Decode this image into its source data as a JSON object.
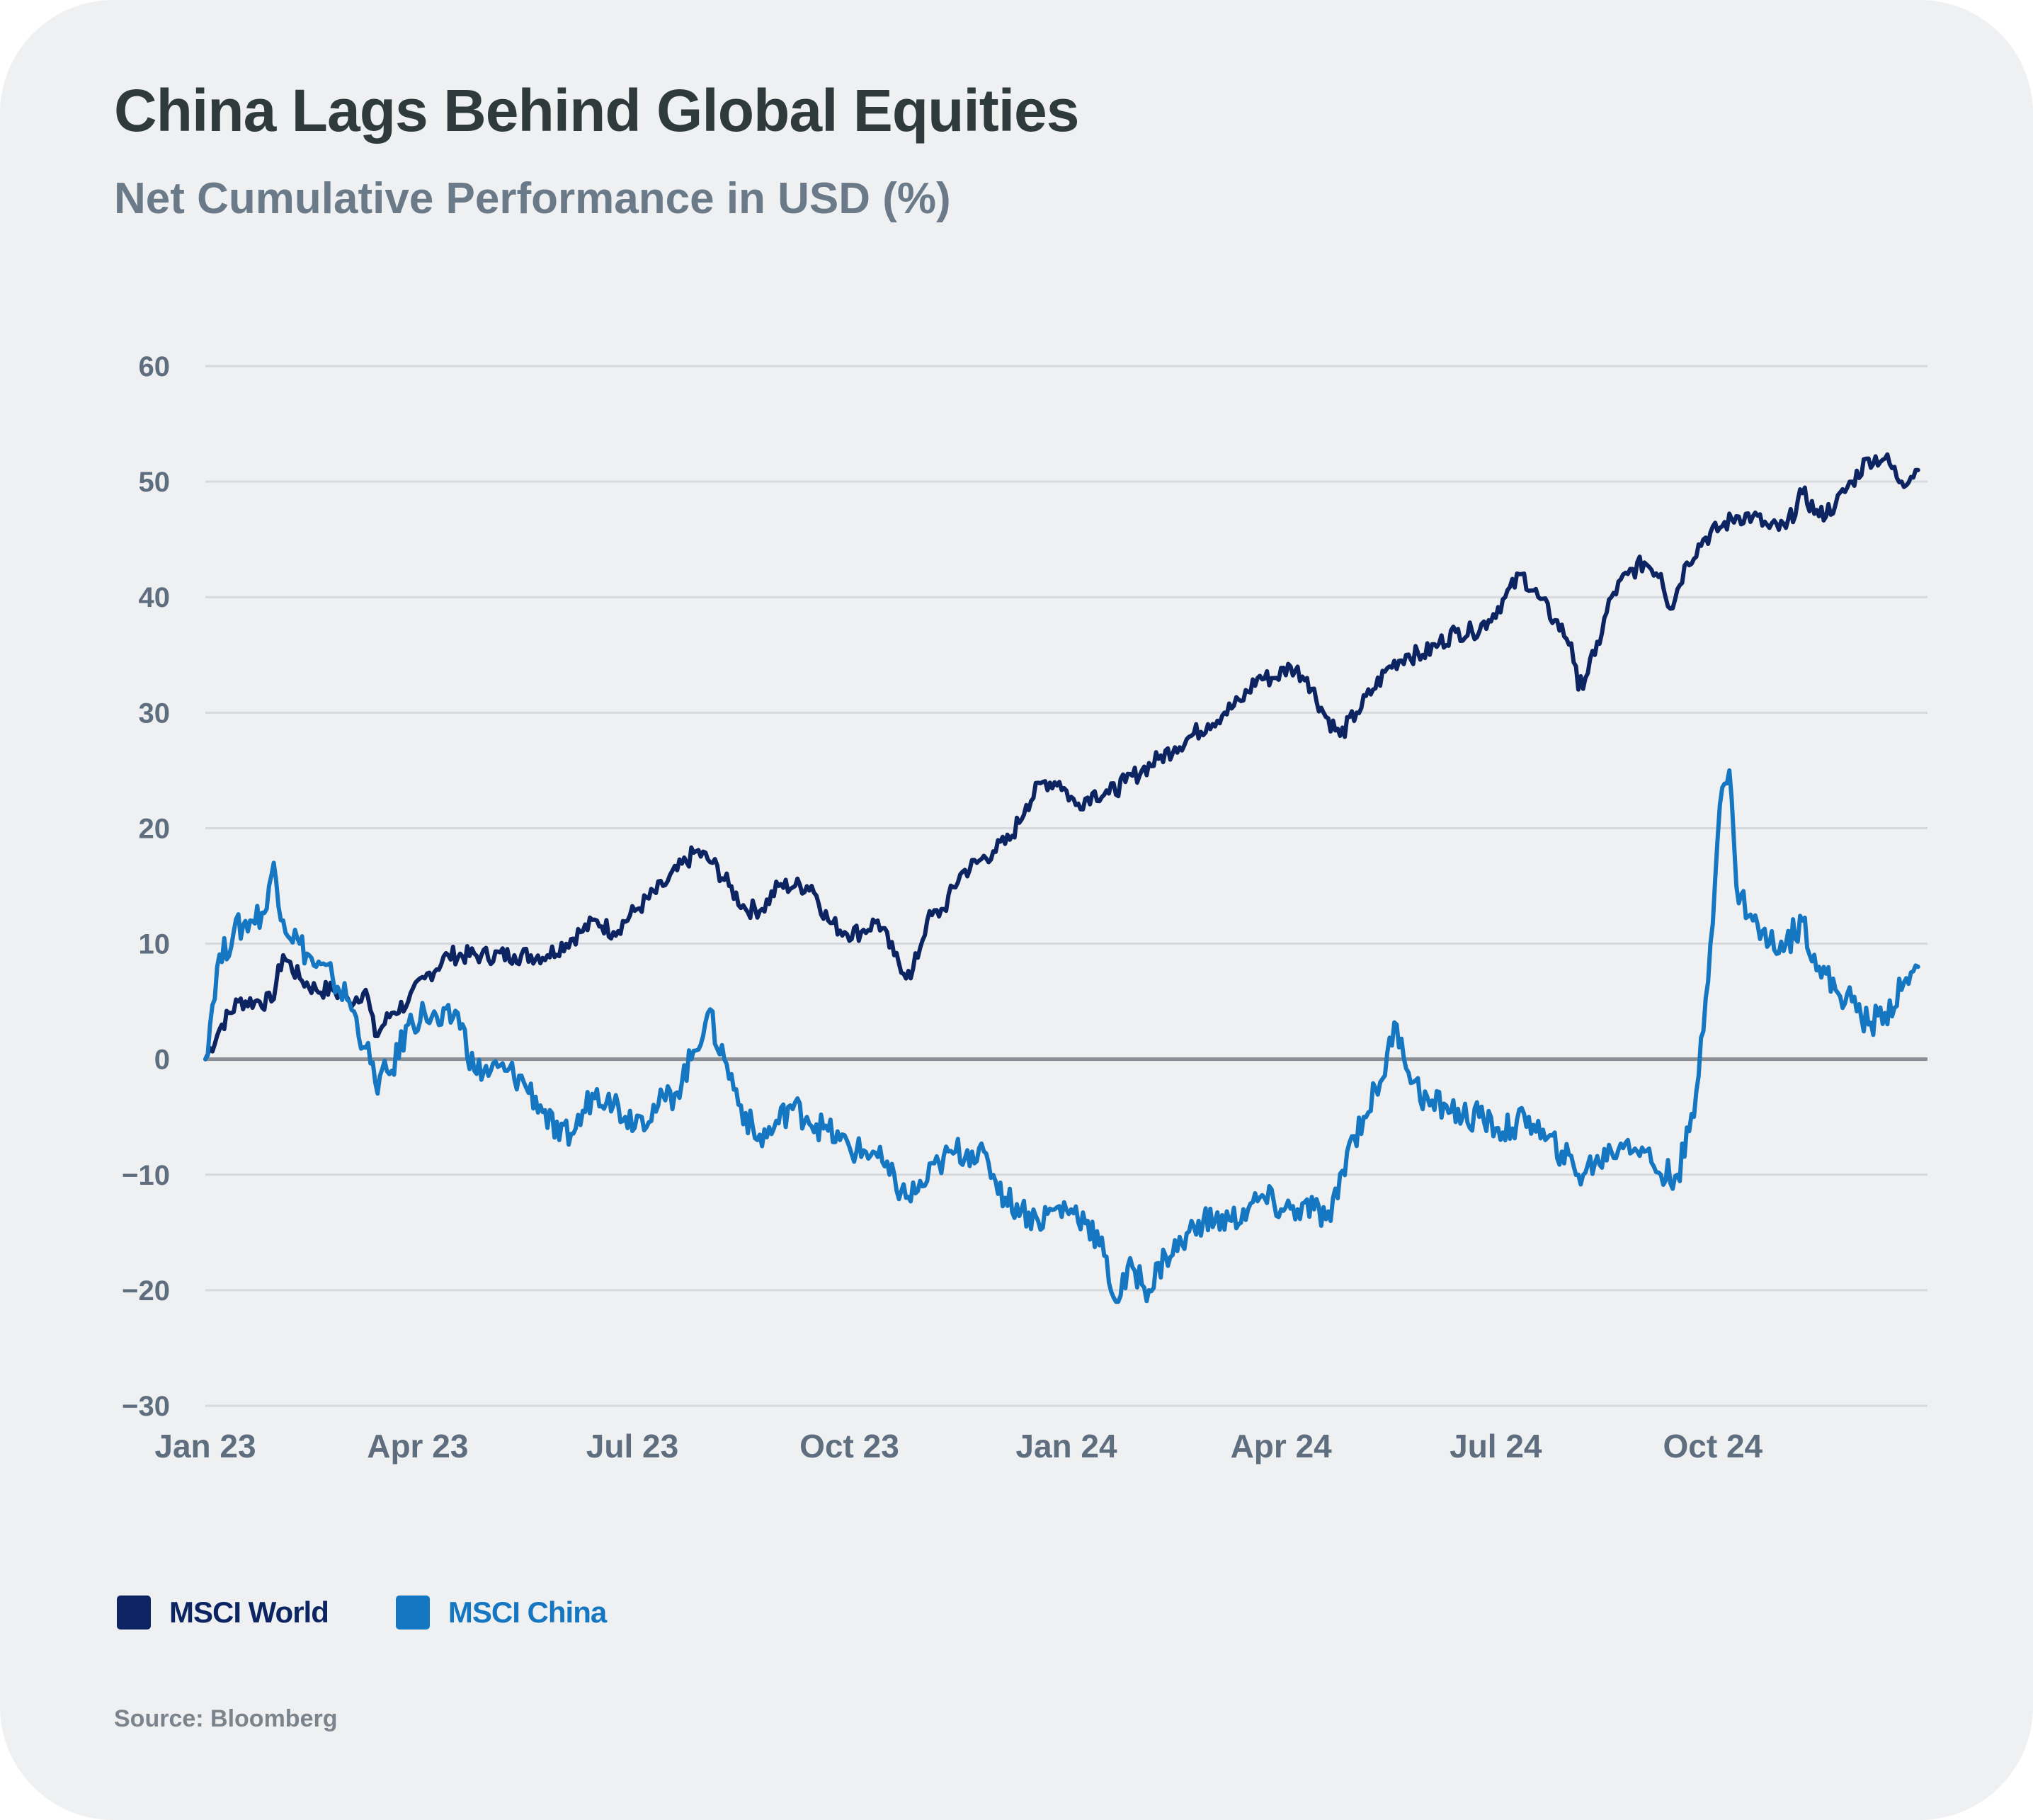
{
  "title": "China Lags Behind Global Equities",
  "subtitle": "Net Cumulative Performance in USD (%)",
  "source": "Source: Bloomberg",
  "colors": {
    "world": "#0c2461",
    "china": "#1576c2",
    "grid": "#d6d9de",
    "zero": "#8a8f96"
  },
  "chart_data": {
    "type": "line",
    "title": "China Lags Behind Global Equities",
    "subtitle": "Net Cumulative Performance in USD (%)",
    "xlabel": "",
    "ylabel": "",
    "x_tick_labels": [
      "Jan 23",
      "Apr 23",
      "Jul 23",
      "Oct 23",
      "Jan 24",
      "Apr 24",
      "Jul 24",
      "Oct 24"
    ],
    "y_ticks": [
      60,
      50,
      40,
      30,
      20,
      10,
      0,
      -10,
      -20,
      -30
    ],
    "ylim": [
      -30,
      60
    ],
    "xlim": [
      "2023-01-01",
      "2024-12-31"
    ],
    "grid": true,
    "legend_position": "bottom-left",
    "series": [
      {
        "name": "MSCI World",
        "color": "#0c2461",
        "points": [
          [
            "2023-01-01",
            0
          ],
          [
            "2023-01-08",
            3
          ],
          [
            "2023-01-15",
            5
          ],
          [
            "2023-01-22",
            5
          ],
          [
            "2023-01-29",
            5
          ],
          [
            "2023-02-03",
            9
          ],
          [
            "2023-02-10",
            7
          ],
          [
            "2023-02-17",
            6
          ],
          [
            "2023-02-24",
            6
          ],
          [
            "2023-03-03",
            5
          ],
          [
            "2023-03-10",
            6
          ],
          [
            "2023-03-14",
            2
          ],
          [
            "2023-03-21",
            4
          ],
          [
            "2023-03-28",
            5
          ],
          [
            "2023-04-04",
            7
          ],
          [
            "2023-04-14",
            9
          ],
          [
            "2023-04-28",
            9
          ],
          [
            "2023-05-12",
            9
          ],
          [
            "2023-05-26",
            9
          ],
          [
            "2023-06-09",
            11
          ],
          [
            "2023-06-16",
            12
          ],
          [
            "2023-06-23",
            11
          ],
          [
            "2023-07-03",
            13
          ],
          [
            "2023-07-14",
            15
          ],
          [
            "2023-07-28",
            18
          ],
          [
            "2023-08-04",
            17
          ],
          [
            "2023-08-11",
            15
          ],
          [
            "2023-08-18",
            13
          ],
          [
            "2023-08-25",
            13
          ],
          [
            "2023-09-01",
            15
          ],
          [
            "2023-09-08",
            15
          ],
          [
            "2023-09-15",
            15
          ],
          [
            "2023-09-22",
            12
          ],
          [
            "2023-09-29",
            11
          ],
          [
            "2023-10-06",
            11
          ],
          [
            "2023-10-13",
            12
          ],
          [
            "2023-10-20",
            9
          ],
          [
            "2023-10-27",
            7
          ],
          [
            "2023-11-03",
            12
          ],
          [
            "2023-11-10",
            13
          ],
          [
            "2023-11-17",
            16
          ],
          [
            "2023-11-24",
            17
          ],
          [
            "2023-12-01",
            18
          ],
          [
            "2023-12-08",
            19
          ],
          [
            "2023-12-15",
            22
          ],
          [
            "2023-12-22",
            24
          ],
          [
            "2023-12-29",
            24
          ],
          [
            "2024-01-05",
            22
          ],
          [
            "2024-01-12",
            23
          ],
          [
            "2024-01-19",
            23
          ],
          [
            "2024-01-26",
            24
          ],
          [
            "2024-02-02",
            25
          ],
          [
            "2024-02-09",
            26
          ],
          [
            "2024-02-16",
            27
          ],
          [
            "2024-02-23",
            28
          ],
          [
            "2024-03-01",
            29
          ],
          [
            "2024-03-08",
            30
          ],
          [
            "2024-03-15",
            31
          ],
          [
            "2024-03-22",
            33
          ],
          [
            "2024-03-29",
            33
          ],
          [
            "2024-04-05",
            34
          ],
          [
            "2024-04-12",
            33
          ],
          [
            "2024-04-19",
            30
          ],
          [
            "2024-04-26",
            28
          ],
          [
            "2024-05-03",
            30
          ],
          [
            "2024-05-10",
            32
          ],
          [
            "2024-05-17",
            34
          ],
          [
            "2024-05-24",
            35
          ],
          [
            "2024-05-31",
            35
          ],
          [
            "2024-06-07",
            36
          ],
          [
            "2024-06-14",
            37
          ],
          [
            "2024-06-21",
            37
          ],
          [
            "2024-06-28",
            38
          ],
          [
            "2024-07-05",
            40
          ],
          [
            "2024-07-12",
            42
          ],
          [
            "2024-07-19",
            40
          ],
          [
            "2024-07-26",
            38
          ],
          [
            "2024-08-02",
            36
          ],
          [
            "2024-08-05",
            32
          ],
          [
            "2024-08-12",
            35
          ],
          [
            "2024-08-19",
            40
          ],
          [
            "2024-08-26",
            42
          ],
          [
            "2024-09-02",
            43
          ],
          [
            "2024-09-09",
            42
          ],
          [
            "2024-09-13",
            39
          ],
          [
            "2024-09-20",
            43
          ],
          [
            "2024-09-27",
            45
          ],
          [
            "2024-10-04",
            46
          ],
          [
            "2024-10-11",
            47
          ],
          [
            "2024-10-18",
            47
          ],
          [
            "2024-10-25",
            46
          ],
          [
            "2024-11-01",
            46
          ],
          [
            "2024-11-08",
            49
          ],
          [
            "2024-11-15",
            47
          ],
          [
            "2024-11-22",
            48
          ],
          [
            "2024-11-29",
            50
          ],
          [
            "2024-12-06",
            52
          ],
          [
            "2024-12-13",
            52
          ],
          [
            "2024-12-20",
            50
          ],
          [
            "2024-12-27",
            51
          ]
        ]
      },
      {
        "name": "MSCI China",
        "color": "#1576c2",
        "points": [
          [
            "2023-01-01",
            0
          ],
          [
            "2023-01-06",
            8
          ],
          [
            "2023-01-13",
            11
          ],
          [
            "2023-01-20",
            12
          ],
          [
            "2023-01-27",
            13
          ],
          [
            "2023-01-30",
            17
          ],
          [
            "2023-02-03",
            12
          ],
          [
            "2023-02-10",
            10
          ],
          [
            "2023-02-17",
            8
          ],
          [
            "2023-02-24",
            7
          ],
          [
            "2023-03-03",
            5
          ],
          [
            "2023-03-10",
            1
          ],
          [
            "2023-03-14",
            -2
          ],
          [
            "2023-03-21",
            -1
          ],
          [
            "2023-03-28",
            3
          ],
          [
            "2023-04-04",
            4
          ],
          [
            "2023-04-11",
            3
          ],
          [
            "2023-04-18",
            4
          ],
          [
            "2023-04-25",
            -1
          ],
          [
            "2023-05-02",
            -1
          ],
          [
            "2023-05-09",
            -1
          ],
          [
            "2023-05-16",
            -2
          ],
          [
            "2023-05-23",
            -4
          ],
          [
            "2023-05-31",
            -7
          ],
          [
            "2023-06-07",
            -6
          ],
          [
            "2023-06-14",
            -3
          ],
          [
            "2023-06-21",
            -3
          ],
          [
            "2023-06-28",
            -5
          ],
          [
            "2023-07-05",
            -5
          ],
          [
            "2023-07-12",
            -4
          ],
          [
            "2023-07-19",
            -3
          ],
          [
            "2023-07-26",
            0
          ],
          [
            "2023-08-02",
            4
          ],
          [
            "2023-08-09",
            0
          ],
          [
            "2023-08-16",
            -4
          ],
          [
            "2023-08-23",
            -7
          ],
          [
            "2023-08-30",
            -6
          ],
          [
            "2023-09-06",
            -4
          ],
          [
            "2023-09-13",
            -5
          ],
          [
            "2023-09-20",
            -6
          ],
          [
            "2023-09-27",
            -7
          ],
          [
            "2023-10-04",
            -8
          ],
          [
            "2023-10-11",
            -8
          ],
          [
            "2023-10-18",
            -10
          ],
          [
            "2023-10-25",
            -12
          ],
          [
            "2023-11-01",
            -11
          ],
          [
            "2023-11-08",
            -9
          ],
          [
            "2023-11-15",
            -8
          ],
          [
            "2023-11-22",
            -8
          ],
          [
            "2023-11-29",
            -9
          ],
          [
            "2023-12-06",
            -12
          ],
          [
            "2023-12-13",
            -13
          ],
          [
            "2023-12-20",
            -14
          ],
          [
            "2023-12-27",
            -13
          ],
          [
            "2024-01-03",
            -13
          ],
          [
            "2024-01-10",
            -14
          ],
          [
            "2024-01-17",
            -17
          ],
          [
            "2024-01-22",
            -21
          ],
          [
            "2024-01-29",
            -18
          ],
          [
            "2024-02-05",
            -20
          ],
          [
            "2024-02-12",
            -17
          ],
          [
            "2024-02-19",
            -16
          ],
          [
            "2024-02-26",
            -14
          ],
          [
            "2024-03-04",
            -14
          ],
          [
            "2024-03-11",
            -14
          ],
          [
            "2024-03-18",
            -13
          ],
          [
            "2024-03-25",
            -12
          ],
          [
            "2024-04-01",
            -13
          ],
          [
            "2024-04-08",
            -13
          ],
          [
            "2024-04-15",
            -13
          ],
          [
            "2024-04-22",
            -14
          ],
          [
            "2024-04-29",
            -8
          ],
          [
            "2024-05-06",
            -5
          ],
          [
            "2024-05-13",
            -2
          ],
          [
            "2024-05-20",
            3
          ],
          [
            "2024-05-27",
            -2
          ],
          [
            "2024-06-03",
            -4
          ],
          [
            "2024-06-10",
            -4
          ],
          [
            "2024-06-17",
            -5
          ],
          [
            "2024-06-24",
            -5
          ],
          [
            "2024-07-01",
            -6
          ],
          [
            "2024-07-08",
            -6
          ],
          [
            "2024-07-15",
            -5
          ],
          [
            "2024-07-22",
            -7
          ],
          [
            "2024-07-29",
            -8
          ],
          [
            "2024-08-05",
            -10
          ],
          [
            "2024-08-12",
            -9
          ],
          [
            "2024-08-19",
            -8
          ],
          [
            "2024-08-26",
            -7
          ],
          [
            "2024-09-02",
            -8
          ],
          [
            "2024-09-09",
            -10
          ],
          [
            "2024-09-16",
            -10
          ],
          [
            "2024-09-23",
            -5
          ],
          [
            "2024-09-30",
            10
          ],
          [
            "2024-10-04",
            22
          ],
          [
            "2024-10-08",
            25
          ],
          [
            "2024-10-11",
            15
          ],
          [
            "2024-10-18",
            12
          ],
          [
            "2024-10-25",
            10
          ],
          [
            "2024-11-01",
            10
          ],
          [
            "2024-11-08",
            12
          ],
          [
            "2024-11-15",
            8
          ],
          [
            "2024-11-22",
            6
          ],
          [
            "2024-11-29",
            5
          ],
          [
            "2024-12-06",
            3
          ],
          [
            "2024-12-13",
            4
          ],
          [
            "2024-12-20",
            6
          ],
          [
            "2024-12-27",
            8
          ]
        ]
      }
    ]
  }
}
